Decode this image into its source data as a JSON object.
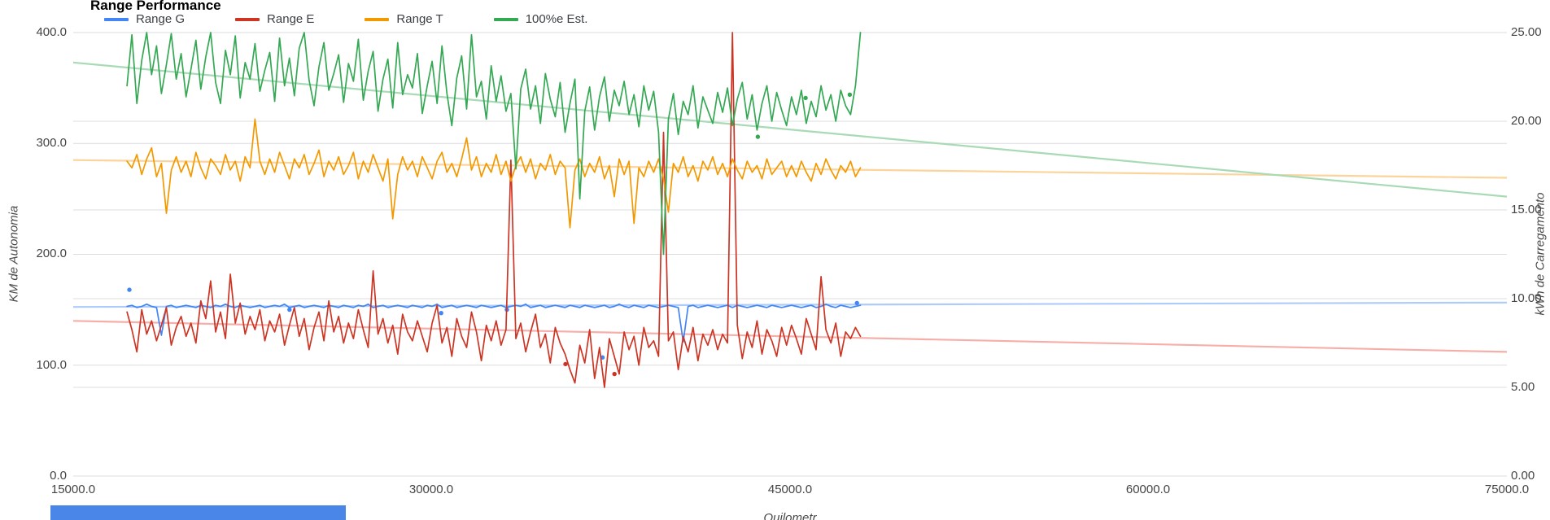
{
  "chart_data": {
    "type": "line",
    "title": "Range Performance",
    "legend_position": "top",
    "grid": true,
    "x_axis": {
      "min": 15000,
      "max": 75000,
      "ticks": [
        15000,
        30000,
        45000,
        60000,
        75000
      ],
      "labels": [
        "15000.0",
        "30000.0",
        "45000.0",
        "60000.0",
        "75000.0"
      ],
      "title_partial": "Quilometr"
    },
    "y_left": {
      "min": 0,
      "max": 400,
      "ticks": [
        0,
        100,
        200,
        300,
        400
      ],
      "labels": [
        "0.0",
        "100.0",
        "200.0",
        "300.0",
        "400.0"
      ],
      "title": "KM de Autonomia"
    },
    "y_right": {
      "min": 0,
      "max": 25,
      "ticks": [
        0,
        5,
        10,
        15,
        20,
        25
      ],
      "labels": [
        "0.00",
        "5.00",
        "10.00",
        "15.00",
        "20.00",
        "25.00"
      ],
      "title": "kWh de Carregamento"
    },
    "series": [
      {
        "name": "Range G",
        "color": "#4285F4",
        "trend_color": "#AECBFA",
        "trend": [
          152.5,
          156.5
        ],
        "x_start": 17250,
        "x_step": 206,
        "values": [
          153,
          154,
          152,
          153,
          155,
          153,
          152,
          127,
          153,
          154,
          152,
          153,
          154,
          153,
          152,
          154,
          153,
          152,
          154,
          153,
          155,
          153,
          152,
          154,
          153,
          152,
          153,
          154,
          152,
          153,
          154,
          153,
          155,
          152,
          153,
          154,
          152,
          153,
          154,
          153,
          152,
          154,
          153,
          152,
          154,
          153,
          152,
          154,
          153,
          155,
          152,
          153,
          154,
          152,
          153,
          154,
          153,
          152,
          154,
          153,
          152,
          154,
          153,
          155,
          152,
          153,
          154,
          152,
          153,
          154,
          153,
          152,
          154,
          153,
          152,
          153,
          154,
          152,
          153,
          154,
          153,
          155,
          152,
          153,
          154,
          152,
          153,
          154,
          153,
          152,
          154,
          153,
          152,
          154,
          153,
          152,
          153,
          154,
          152,
          153,
          155,
          153,
          152,
          154,
          153,
          152,
          154,
          153,
          152,
          153,
          154,
          153,
          152,
          121,
          153,
          154,
          152,
          153,
          154,
          153,
          152,
          153,
          154,
          152,
          154,
          153,
          152,
          153,
          154,
          153,
          152,
          154,
          153,
          152,
          153,
          154,
          153,
          152,
          153,
          154,
          152,
          153,
          155,
          153,
          152,
          154,
          153,
          152,
          153,
          154
        ],
        "dots": [
          [
            17350,
            168
          ],
          [
            24050,
            150
          ],
          [
            30400,
            147
          ],
          [
            33150,
            150
          ],
          [
            37150,
            107
          ],
          [
            47800,
            156
          ]
        ]
      },
      {
        "name": "Range E",
        "color": "#CC3524",
        "trend_color": "#F6AEA9",
        "trend": [
          140,
          112
        ],
        "x_start": 17250,
        "x_step": 206,
        "values": [
          148,
          132,
          112,
          150,
          128,
          140,
          122,
          136,
          152,
          118,
          134,
          144,
          126,
          138,
          120,
          158,
          142,
          176,
          130,
          148,
          124,
          182,
          138,
          156,
          128,
          144,
          132,
          150,
          122,
          140,
          130,
          146,
          118,
          136,
          152,
          126,
          142,
          114,
          134,
          148,
          122,
          158,
          130,
          144,
          120,
          138,
          124,
          150,
          132,
          116,
          185,
          128,
          142,
          120,
          136,
          110,
          146,
          130,
          122,
          140,
          126,
          112,
          138,
          154,
          120,
          134,
          108,
          142,
          126,
          116,
          148,
          130,
          104,
          136,
          122,
          140,
          118,
          132,
          285,
          124,
          138,
          112,
          130,
          146,
          116,
          128,
          102,
          134,
          120,
          110,
          96,
          84,
          118,
          102,
          132,
          88,
          116,
          80,
          124,
          108,
          92,
          130,
          114,
          126,
          100,
          134,
          116,
          122,
          108,
          310,
          122,
          130,
          96,
          126,
          112,
          134,
          104,
          128,
          118,
          132,
          114,
          128,
          120,
          400,
          136,
          106,
          130,
          116,
          140,
          110,
          132,
          122,
          108,
          134,
          118,
          136,
          124,
          110,
          142,
          128,
          114,
          180,
          132,
          120,
          138,
          108,
          130,
          124,
          134,
          126
        ],
        "dots": [
          [
            35600,
            101
          ],
          [
            37650,
            92
          ]
        ]
      },
      {
        "name": "Range T",
        "color": "#F29900",
        "trend_color": "#FCD49B",
        "trend": [
          285,
          269
        ],
        "x_start": 17250,
        "x_step": 206,
        "values": [
          284,
          278,
          290,
          272,
          286,
          296,
          270,
          282,
          237,
          276,
          288,
          274,
          284,
          270,
          292,
          278,
          268,
          286,
          280,
          272,
          290,
          276,
          284,
          266,
          288,
          278,
          322,
          284,
          272,
          286,
          274,
          292,
          280,
          268,
          286,
          278,
          290,
          272,
          282,
          294,
          270,
          284,
          276,
          288,
          272,
          280,
          292,
          268,
          284,
          274,
          290,
          278,
          266,
          286,
          232,
          272,
          288,
          276,
          284,
          270,
          288,
          278,
          268,
          284,
          292,
          274,
          282,
          270,
          286,
          305,
          276,
          288,
          270,
          282,
          274,
          290,
          272,
          284,
          266,
          280,
          288,
          274,
          286,
          268,
          282,
          276,
          290,
          272,
          284,
          278,
          224,
          276,
          286,
          270,
          282,
          274,
          288,
          268,
          280,
          252,
          286,
          272,
          284,
          228,
          278,
          270,
          284,
          274,
          286,
          268,
          238,
          282,
          274,
          288,
          270,
          280,
          266,
          284,
          276,
          288,
          272,
          282,
          270,
          286,
          276,
          268,
          284,
          274,
          280,
          268,
          286,
          272,
          278,
          284,
          270,
          280,
          270,
          284,
          274,
          266,
          282,
          272,
          286,
          276,
          268,
          280,
          274,
          284,
          270,
          278
        ],
        "dots": []
      },
      {
        "name": "100%e Est.",
        "color": "#34A853",
        "trend_color": "#A8DAB5",
        "trend": [
          373,
          252
        ],
        "x_start": 17250,
        "x_step": 206,
        "values": [
          352,
          398,
          336,
          375,
          400,
          362,
          388,
          345,
          371,
          399,
          358,
          381,
          342,
          367,
          393,
          349,
          378,
          400,
          355,
          336,
          384,
          362,
          397,
          341,
          373,
          358,
          390,
          347,
          366,
          382,
          338,
          395,
          352,
          377,
          343,
          386,
          400,
          357,
          334,
          369,
          391,
          348,
          363,
          380,
          337,
          372,
          356,
          394,
          339,
          365,
          383,
          329,
          358,
          376,
          332,
          391,
          344,
          362,
          350,
          381,
          327,
          352,
          374,
          336,
          388,
          345,
          316,
          359,
          379,
          331,
          398,
          342,
          356,
          322,
          370,
          338,
          361,
          329,
          345,
          277,
          349,
          367,
          331,
          352,
          318,
          363,
          340,
          324,
          355,
          310,
          336,
          358,
          250,
          329,
          351,
          312,
          342,
          360,
          320,
          348,
          334,
          356,
          326,
          344,
          315,
          352,
          330,
          347,
          310,
          200,
          322,
          345,
          308,
          338,
          326,
          352,
          314,
          342,
          330,
          318,
          346,
          328,
          350,
          316,
          340,
          355,
          322,
          344,
          312,
          336,
          352,
          320,
          346,
          330,
          316,
          342,
          326,
          348,
          318,
          338,
          324,
          352,
          330,
          344,
          320,
          348,
          334,
          326,
          352,
          400
        ],
        "dots": [
          [
            43650,
            306
          ],
          [
            45650,
            341
          ],
          [
            47500,
            344
          ]
        ]
      }
    ]
  }
}
